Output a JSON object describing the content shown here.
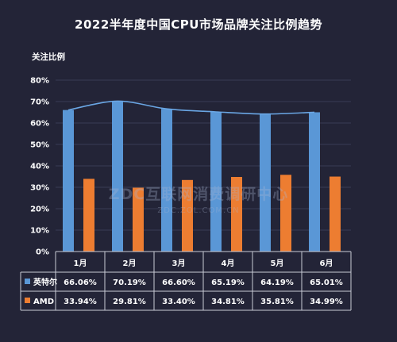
{
  "title": "2022半年度中国CPU市场品牌关注比例趋势",
  "watermark": {
    "main": "ZDC互联网消费调研中心",
    "sub": "ZDC.ZOL.COM.CN"
  },
  "colors": {
    "background": "#232437",
    "intel": "#5a97d6",
    "amd": "#ed7d31",
    "trend": "#6aa6e4",
    "grid": "#3a3d55",
    "table_border": "#c8cbd6"
  },
  "chart_data": {
    "type": "bar",
    "ylabel": "关注比例",
    "ylim": [
      0,
      80
    ],
    "yticks": [
      "0%",
      "10%",
      "20%",
      "30%",
      "40%",
      "50%",
      "60%",
      "70%",
      "80%"
    ],
    "categories": [
      "1月",
      "2月",
      "3月",
      "4月",
      "5月",
      "6月"
    ],
    "series": [
      {
        "name": "英特尔",
        "values": [
          66.06,
          70.19,
          66.6,
          65.19,
          64.19,
          65.01
        ],
        "labels": [
          "66.06%",
          "70.19%",
          "66.60%",
          "65.19%",
          "64.19%",
          "65.01%"
        ]
      },
      {
        "name": "AMD",
        "values": [
          33.94,
          29.81,
          33.4,
          34.81,
          35.81,
          34.99
        ],
        "labels": [
          "33.94%",
          "29.81%",
          "33.40%",
          "34.81%",
          "35.81%",
          "34.99%"
        ]
      }
    ],
    "trendline": "英特尔",
    "grid": true,
    "legend": "data-table"
  }
}
